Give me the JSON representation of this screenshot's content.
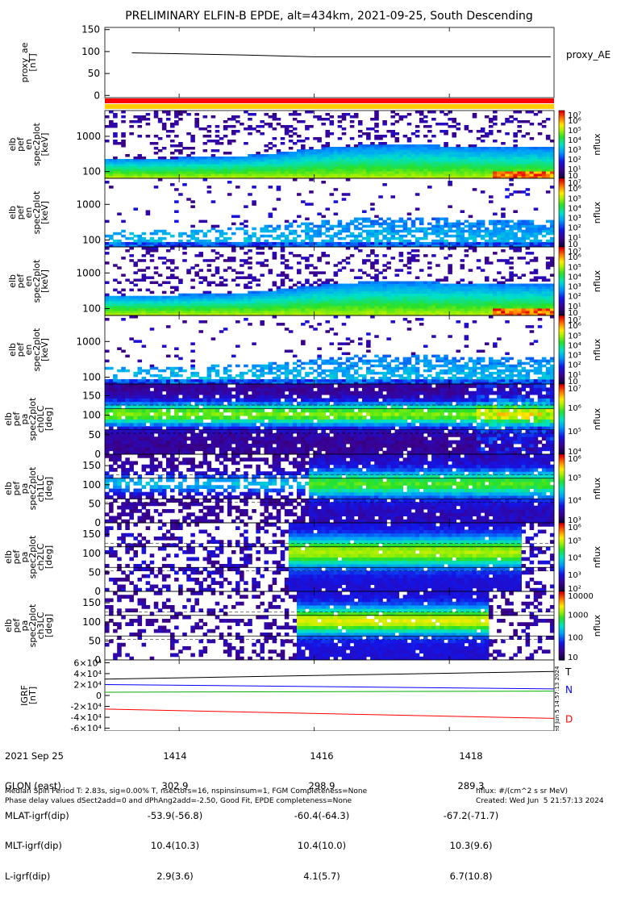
{
  "chart_data": [
    {
      "type": "line",
      "title": "PRELIMINARY ELFIN-B EPDE, alt=434km, 2021-09-25, South Descending",
      "ylabel": "proxy_ae [nT]",
      "ylim": [
        -5,
        155
      ],
      "yticks": [
        0,
        50,
        100,
        150
      ],
      "series": [
        {
          "name": "proxy_AE",
          "x": [
            1413.3,
            1415.0,
            1416.0,
            1419.5
          ],
          "y": [
            97,
            92,
            88,
            88
          ]
        }
      ]
    },
    {
      "type": "heatmap",
      "ylabel": "elb pef en spec2plot [keV]",
      "colorbar": {
        "label": "nflux",
        "ticks": [
          "10",
          "10¹",
          "10²",
          "10³",
          "10⁴",
          "10⁵",
          "10⁶",
          "10⁷"
        ]
      }
    },
    {
      "type": "heatmap",
      "ylabel": "elb pef en spec2plot [keV]",
      "colorbar": {
        "label": "nflux",
        "ticks": [
          "10",
          "10¹",
          "10²",
          "10³",
          "10⁴",
          "10⁵",
          "10⁶",
          "10⁷"
        ]
      }
    },
    {
      "type": "heatmap",
      "ylabel": "elb pef en spec2plot [keV]",
      "colorbar": {
        "label": "nflux",
        "ticks": [
          "10",
          "10¹",
          "10²",
          "10³",
          "10⁴",
          "10⁵",
          "10⁶",
          "10⁷"
        ]
      }
    },
    {
      "type": "heatmap",
      "ylabel": "elb pef en spec2plot [keV]",
      "colorbar": {
        "label": "nflux",
        "ticks": [
          "10",
          "10¹",
          "10²",
          "10³",
          "10⁴",
          "10⁵",
          "10⁶",
          "10⁷"
        ]
      }
    },
    {
      "type": "heatmap",
      "ylabel": "elb pef pa spec2plot ch0LC [deg]",
      "colorbar": {
        "label": "nflux",
        "ticks": [
          "10⁴",
          "10⁵",
          "10⁶",
          "10⁷"
        ]
      }
    },
    {
      "type": "heatmap",
      "ylabel": "elb pef pa spec2plot ch1LC [deg]",
      "colorbar": {
        "label": "nflux",
        "ticks": [
          "10³",
          "10⁴",
          "10⁵",
          "10⁶"
        ]
      }
    },
    {
      "type": "heatmap",
      "ylabel": "elb pef pa spec2plot ch2LC [deg]",
      "colorbar": {
        "label": "nflux",
        "ticks": [
          "10²",
          "10³",
          "10⁴",
          "10⁵",
          "10⁶"
        ]
      }
    },
    {
      "type": "heatmap",
      "ylabel": "elb pef pa spec2plot ch3LC [deg]",
      "colorbar": {
        "label": "nflux",
        "ticks": [
          "10",
          "100",
          "1000",
          "10000"
        ]
      }
    },
    {
      "type": "line",
      "ylabel": "IGRF [nT]",
      "ylim": [
        -65000,
        65000
      ],
      "yticks": [
        "-6×10⁴",
        "-4×10⁴",
        "-2×10⁴",
        "0",
        "2×10⁴",
        "4×10⁴",
        "6×10⁴"
      ],
      "series": [
        {
          "name": "T",
          "color": "#000000",
          "y_start": 30000,
          "y_end": 44000
        },
        {
          "name": "N",
          "color": "#0000ff",
          "y_start": 20000,
          "y_end": 12000
        },
        {
          "name": "D",
          "color": "#ff0000",
          "y_start": -25000,
          "y_end": -42000
        },
        {
          "color": "#00b000",
          "y_start": 6000,
          "y_end": 8000
        }
      ]
    }
  ],
  "time_axis": {
    "ticks": [
      "1414",
      "1416",
      "1418"
    ],
    "tick_positions": [
      1414,
      1416,
      1418
    ],
    "range": [
      1412.9,
      1419.55
    ]
  },
  "footer": {
    "row_labels": [
      "2021 Sep 25",
      "GLON (east)",
      "MLAT-igrf(dip)",
      "MLT-igrf(dip)",
      "L-igrf(dip)"
    ],
    "col1": [
      "1414",
      "302.9",
      "-53.9(-56.8)",
      "10.4(10.3)",
      "2.9(3.6)"
    ],
    "col2": [
      "1416",
      "298.9",
      "-60.4(-64.3)",
      "10.4(10.0)",
      "4.1(5.7)"
    ],
    "col3": [
      "1418",
      "289.3",
      "-67.2(-71.7)",
      "10.3(9.6)",
      "6.7(10.8)"
    ],
    "note_line1": "Median Spin Period T: 2.83s, sig=0.00% T, nsectors=16, nspinsinsum=1, FGM Completeness=None",
    "note_line2": "Phase delay values dSect2add=0 and dPhAng2add=-2.50, Good Fit, EPDE completeness=None",
    "units_note": "nflux: #/(cm^2 s sr MeV)",
    "created_note": "Created: Wed Jun  5 21:57:13 2024"
  },
  "side_stamp": "Wed Jun  5 14:57:13 2024"
}
